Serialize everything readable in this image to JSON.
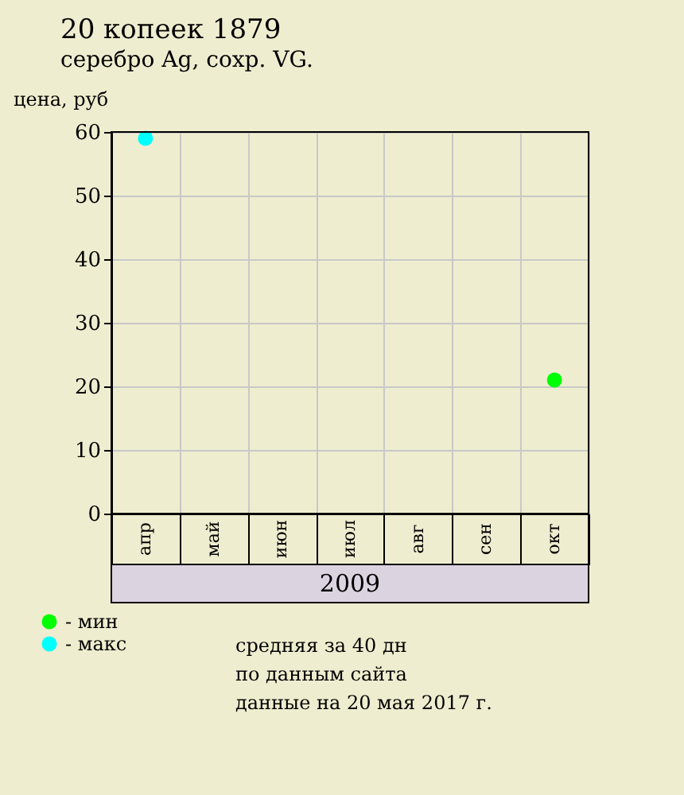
{
  "chart_data": {
    "type": "scatter",
    "title": "20 копеек 1879",
    "subtitle": "серебро Ag, сохр. VG.",
    "ylabel": "цена, руб",
    "xlabel": "2009",
    "categories": [
      "апр",
      "май",
      "июн",
      "июл",
      "авг",
      "сен",
      "окт"
    ],
    "series": [
      {
        "name": "- мин",
        "color": "#00ff00",
        "values": [
          null,
          null,
          null,
          null,
          null,
          null,
          21
        ]
      },
      {
        "name": "- макс",
        "color": "#00ffff",
        "values": [
          59,
          null,
          null,
          null,
          null,
          null,
          null
        ]
      }
    ],
    "ylim": [
      0,
      60
    ],
    "yticks": [
      0,
      10,
      20,
      30,
      40,
      50,
      60
    ],
    "grid": true,
    "legend": "bottom left",
    "marker": "circle",
    "annotations": [
      "средняя за 40 дн",
      "по данным сайта",
      "данные на 20 мая 2017 г."
    ]
  }
}
